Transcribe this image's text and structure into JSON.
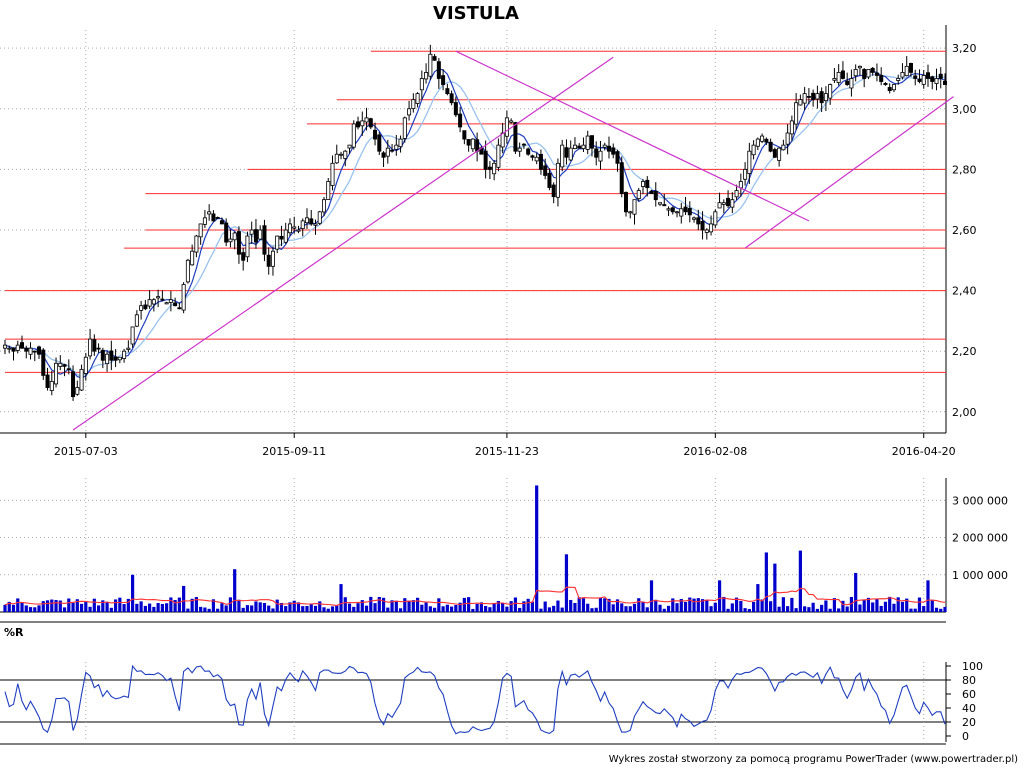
{
  "chart_data": {
    "type": "candlestick",
    "title": "VISTULA",
    "footer": "Wykres został stworzony za pomocą programu PowerTrader (www.powertrader.pl)",
    "colors": {
      "up_candle": "#ffffff",
      "down_candle": "#000000",
      "ma_short": "#1f3fbf",
      "ma_long": "#99c2ee",
      "support_lines": "#ff2b2b",
      "trend_lines": "#cc33cc",
      "volume_bars": "#0000cc",
      "volume_ma": "#ff3030",
      "williams_r": "#1f3fbf"
    },
    "price_panel": {
      "ylim": [
        1.93,
        3.26
      ],
      "y_ticks": [
        "2,00",
        "2,20",
        "2,40",
        "2,60",
        "2,80",
        "3,00",
        "3,20"
      ],
      "y_tick_values": [
        2.0,
        2.2,
        2.4,
        2.6,
        2.8,
        3.0,
        3.2
      ],
      "x_tick_labels": [
        "2015-07-03",
        "2015-09-11",
        "2015-11-23",
        "2016-02-08",
        "2016-04-20"
      ],
      "x_tick_index": [
        19,
        68,
        118,
        167,
        216
      ],
      "session_count": 222,
      "closes": [
        2.22,
        2.21,
        2.2,
        2.22,
        2.21,
        2.2,
        2.21,
        2.2,
        2.19,
        2.12,
        2.08,
        2.1,
        2.16,
        2.16,
        2.15,
        2.14,
        2.05,
        2.08,
        2.14,
        2.18,
        2.24,
        2.2,
        2.21,
        2.17,
        2.19,
        2.17,
        2.17,
        2.18,
        2.2,
        2.21,
        2.28,
        2.32,
        2.35,
        2.34,
        2.37,
        2.37,
        2.38,
        2.37,
        2.36,
        2.37,
        2.35,
        2.34,
        2.42,
        2.5,
        2.53,
        2.58,
        2.62,
        2.64,
        2.66,
        2.63,
        2.64,
        2.62,
        2.56,
        2.57,
        2.59,
        2.52,
        2.5,
        2.58,
        2.6,
        2.56,
        2.6,
        2.52,
        2.48,
        2.53,
        2.58,
        2.57,
        2.6,
        2.62,
        2.61,
        2.6,
        2.63,
        2.64,
        2.62,
        2.62,
        2.66,
        2.7,
        2.76,
        2.82,
        2.85,
        2.85,
        2.86,
        2.88,
        2.95,
        2.94,
        2.96,
        2.97,
        2.94,
        2.9,
        2.86,
        2.84,
        2.87,
        2.86,
        2.88,
        2.9,
        2.97,
        3.0,
        3.03,
        3.05,
        3.1,
        3.12,
        3.18,
        3.16,
        3.1,
        3.08,
        3.05,
        3.02,
        2.98,
        2.94,
        2.9,
        2.88,
        2.9,
        2.86,
        2.85,
        2.8,
        2.8,
        2.82,
        2.88,
        2.92,
        2.97,
        2.96,
        2.86,
        2.87,
        2.88,
        2.85,
        2.84,
        2.84,
        2.8,
        2.78,
        2.74,
        2.71,
        2.82,
        2.88,
        2.84,
        2.87,
        2.88,
        2.87,
        2.88,
        2.91,
        2.87,
        2.84,
        2.86,
        2.88,
        2.86,
        2.85,
        2.82,
        2.72,
        2.66,
        2.66,
        2.7,
        2.73,
        2.76,
        2.74,
        2.72,
        2.7,
        2.69,
        2.68,
        2.67,
        2.66,
        2.66,
        2.67,
        2.66,
        2.65,
        2.64,
        2.62,
        2.6,
        2.6,
        2.62,
        2.66,
        2.69,
        2.69,
        2.68,
        2.7,
        2.73,
        2.76,
        2.8,
        2.86,
        2.88,
        2.9,
        2.91,
        2.89,
        2.86,
        2.84,
        2.87,
        2.88,
        2.92,
        2.96,
        3.02,
        3.03,
        3.05,
        3.04,
        3.03,
        3.05,
        3.02,
        3.05,
        3.08,
        3.1,
        3.12,
        3.1,
        3.08,
        3.1,
        3.13,
        3.14,
        3.1,
        3.13,
        3.12,
        3.11,
        3.09,
        3.08,
        3.06,
        3.08,
        3.1,
        3.12,
        3.14,
        3.12,
        3.1,
        3.09,
        3.11,
        3.1,
        3.09,
        3.1,
        3.1,
        3.08
      ],
      "support_levels": [
        {
          "price": 3.19,
          "from_index": 86
        },
        {
          "price": 3.03,
          "from_index": 78
        },
        {
          "price": 2.95,
          "from_index": 71
        },
        {
          "price": 2.8,
          "from_index": 57
        },
        {
          "price": 2.72,
          "from_index": 33
        },
        {
          "price": 2.6,
          "from_index": 33
        },
        {
          "price": 2.54,
          "from_index": 28
        },
        {
          "price": 2.4,
          "from_index": 0
        },
        {
          "price": 2.24,
          "from_index": 0
        },
        {
          "price": 2.13,
          "from_index": 0
        }
      ],
      "trend_lines": [
        {
          "from": [
            16,
            1.94
          ],
          "to": [
            143,
            3.17
          ]
        },
        {
          "from": [
            106,
            3.19
          ],
          "to": [
            189,
            2.63
          ]
        },
        {
          "from": [
            174,
            2.54
          ],
          "to": [
            223,
            3.04
          ]
        }
      ]
    },
    "volume_panel": {
      "ylim": [
        0,
        3600000
      ],
      "y_ticks": [
        "1 000 000",
        "2 000 000",
        "3 000 000"
      ],
      "y_tick_values": [
        1000000,
        2000000,
        3000000
      ],
      "spikes": [
        {
          "index": 30,
          "value": 1000000
        },
        {
          "index": 42,
          "value": 700000
        },
        {
          "index": 54,
          "value": 1150000
        },
        {
          "index": 79,
          "value": 750000
        },
        {
          "index": 125,
          "value": 3400000
        },
        {
          "index": 132,
          "value": 1550000
        },
        {
          "index": 152,
          "value": 850000
        },
        {
          "index": 168,
          "value": 850000
        },
        {
          "index": 177,
          "value": 750000
        },
        {
          "index": 179,
          "value": 1600000
        },
        {
          "index": 181,
          "value": 1300000
        },
        {
          "index": 187,
          "value": 1650000
        },
        {
          "index": 200,
          "value": 1050000
        },
        {
          "index": 217,
          "value": 850000
        }
      ]
    },
    "williams_r_panel": {
      "label": "%R",
      "ylim": [
        0,
        100
      ],
      "y_ticks": [
        "0",
        "20",
        "40",
        "60",
        "80",
        "100"
      ],
      "y_tick_values": [
        0,
        20,
        40,
        60,
        80,
        100
      ],
      "reference_lines": [
        20,
        80
      ]
    }
  }
}
